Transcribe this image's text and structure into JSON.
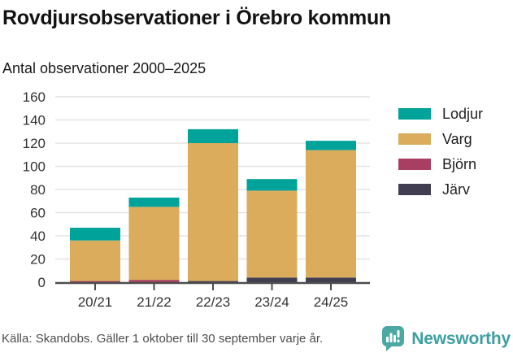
{
  "title": "Rovdjursobservationer i Örebro kommun",
  "subtitle": "Antal observationer 2000–2025",
  "chart_data": {
    "type": "bar",
    "stacked": true,
    "title": "Rovdjursobservationer i Örebro kommun",
    "subtitle_as_ylabel": "Antal observationer 2000–2025",
    "categories": [
      "20/21",
      "21/22",
      "22/23",
      "23/24",
      "24/25"
    ],
    "series": [
      {
        "name": "Lodjur",
        "color": "#00A39A",
        "values": [
          11,
          8,
          12,
          10,
          8
        ]
      },
      {
        "name": "Varg",
        "color": "#DBAC5C",
        "values": [
          35,
          63,
          119,
          75,
          110
        ]
      },
      {
        "name": "Björn",
        "color": "#A83E62",
        "values": [
          1,
          2,
          0,
          0,
          0
        ]
      },
      {
        "name": "Järv",
        "color": "#413E52",
        "values": [
          0,
          0,
          1,
          4,
          4
        ]
      }
    ],
    "totals": [
      47,
      73,
      132,
      89,
      122
    ],
    "ylim": [
      0,
      160
    ],
    "ytick_step": 20,
    "grid": true,
    "legend_position": "right",
    "grid_color": "#E3E3E3",
    "axis_color": "#4D4D4D",
    "tick_label_color": "#333333"
  },
  "footer": {
    "source": "Källa: Skandobs. Gäller 1 oktober till 30 september varje år.",
    "brand": "Newsworthy",
    "brand_color": "#3E9FA1",
    "logo_color": "#4BA8A3"
  }
}
